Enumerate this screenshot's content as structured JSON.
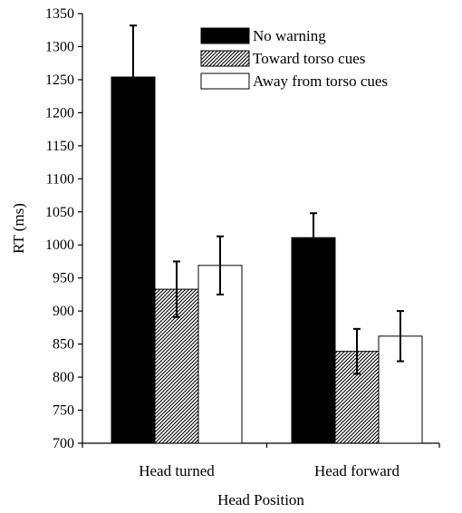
{
  "chart_data": {
    "type": "bar",
    "categories": [
      "Head turned",
      "Head forward"
    ],
    "series": [
      {
        "name": "No warning",
        "values": [
          1254,
          1011
        ],
        "error": [
          78,
          37
        ],
        "fill": "#000000"
      },
      {
        "name": "Toward torso cues",
        "values": [
          933,
          839
        ],
        "error": [
          42,
          34
        ],
        "fill": "hatch"
      },
      {
        "name": "Away from torso cues",
        "values": [
          969,
          862
        ],
        "error": [
          44,
          38
        ],
        "fill": "#ffffff"
      }
    ],
    "xlabel": "Head Position",
    "ylabel": "RT (ms)",
    "ylim": [
      700,
      1350
    ],
    "yticks": [
      700,
      750,
      800,
      850,
      900,
      950,
      1000,
      1050,
      1100,
      1150,
      1200,
      1250,
      1300,
      1350
    ],
    "grid": false,
    "legend": "top-right"
  }
}
